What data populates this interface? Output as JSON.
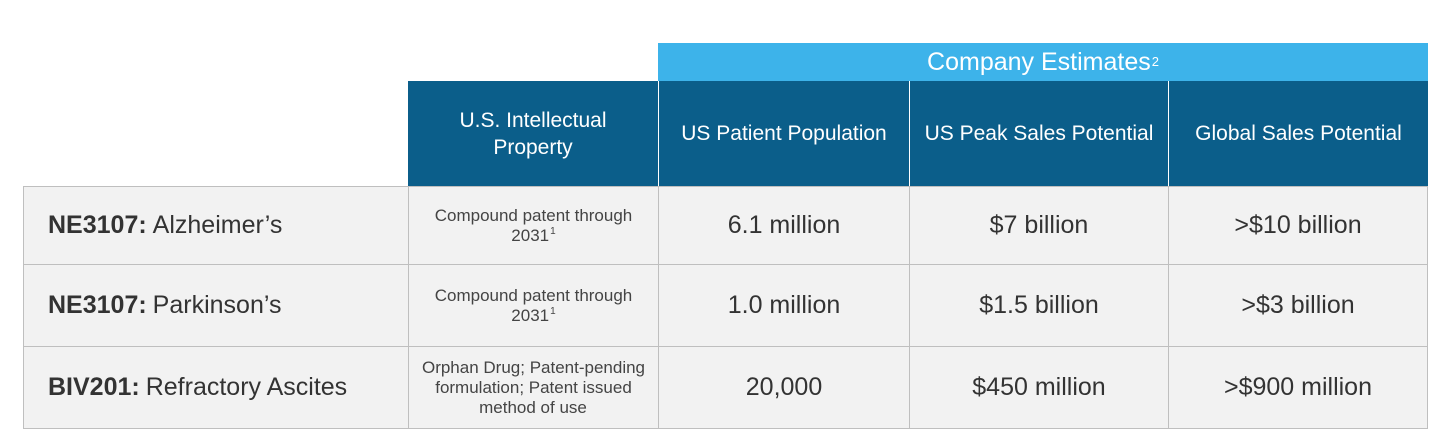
{
  "banner": {
    "title": "Company Estimates",
    "sup": "2"
  },
  "headers": {
    "ip": "U.S. Intellectual Property",
    "population": "US Patient Population",
    "peak": "US Peak Sales Potential",
    "global": "Global Sales Potential"
  },
  "rows": [
    {
      "code": "NE3107:",
      "indication": "Alzheimer’s",
      "ip_text": "Compound patent through 2031",
      "ip_sup": "1",
      "population": "6.1 million",
      "peak": "$7 billion",
      "global": ">$10 billion"
    },
    {
      "code": "NE3107:",
      "indication": "Parkinson’s",
      "ip_text": "Compound patent through 2031",
      "ip_sup": "1",
      "population": "1.0 million",
      "peak": "$1.5 billion",
      "global": ">$3 billion"
    },
    {
      "code": "BIV201:",
      "indication": "Refractory Ascites",
      "ip_text": "Orphan Drug; Patent-pending formulation; Patent issued method of use",
      "ip_sup": "",
      "population": "20,000",
      "peak": "$450 million",
      "global": ">$900 million"
    }
  ]
}
